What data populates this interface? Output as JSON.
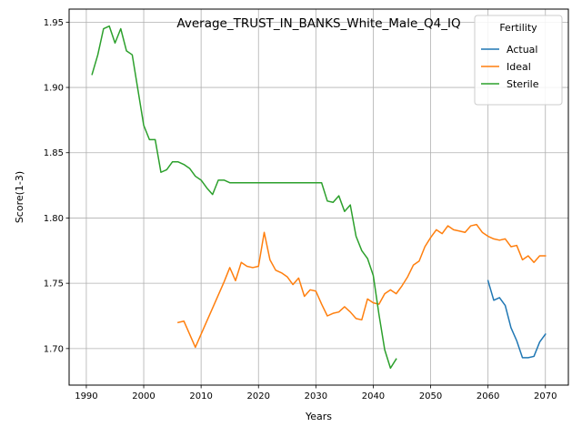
{
  "chart_data": {
    "type": "line",
    "title": "Average_TRUST_IN_BANKS_White_Male_Q4_IQ",
    "xlabel": "Years",
    "ylabel": "Score(1-3)",
    "xlim": [
      1987,
      2074
    ],
    "ylim": [
      1.672,
      1.96
    ],
    "xticks": [
      1990,
      2000,
      2010,
      2020,
      2030,
      2040,
      2050,
      2060,
      2070
    ],
    "yticks": [
      1.7,
      1.75,
      1.8,
      1.85,
      1.9,
      1.95
    ],
    "grid": true,
    "legend": {
      "title": "Fertility",
      "position": "top-right"
    },
    "series": [
      {
        "name": "Actual",
        "color": "#1f77b4",
        "x": [
          2060,
          2061,
          2062,
          2063,
          2064,
          2065,
          2066,
          2067,
          2068,
          2069,
          2070
        ],
        "y": [
          1.752,
          1.737,
          1.739,
          1.733,
          1.716,
          1.706,
          1.693,
          1.693,
          1.694,
          1.705,
          1.711
        ]
      },
      {
        "name": "Ideal",
        "color": "#ff7f0e",
        "x": [
          2006,
          2007,
          2008,
          2009,
          2010,
          2011,
          2012,
          2013,
          2014,
          2015,
          2016,
          2017,
          2018,
          2019,
          2020,
          2021,
          2022,
          2023,
          2024,
          2025,
          2026,
          2027,
          2028,
          2029,
          2030,
          2031,
          2032,
          2033,
          2034,
          2035,
          2036,
          2037,
          2038,
          2039,
          2040,
          2041,
          2042,
          2043,
          2044,
          2045,
          2046,
          2047,
          2048,
          2049,
          2050,
          2051,
          2052,
          2053,
          2054,
          2055,
          2056,
          2057,
          2058,
          2059,
          2060,
          2061,
          2062,
          2063,
          2064,
          2065,
          2066,
          2067,
          2068,
          2069,
          2070
        ],
        "y": [
          1.72,
          1.721,
          1.711,
          1.701,
          1.711,
          1.721,
          1.731,
          1.741,
          1.751,
          1.762,
          1.752,
          1.766,
          1.763,
          1.762,
          1.763,
          1.789,
          1.768,
          1.76,
          1.758,
          1.755,
          1.749,
          1.754,
          1.74,
          1.745,
          1.744,
          1.734,
          1.725,
          1.727,
          1.728,
          1.732,
          1.728,
          1.723,
          1.722,
          1.738,
          1.735,
          1.734,
          1.742,
          1.745,
          1.742,
          1.748,
          1.755,
          1.764,
          1.767,
          1.778,
          1.785,
          1.791,
          1.788,
          1.794,
          1.791,
          1.79,
          1.789,
          1.794,
          1.795,
          1.789,
          1.786,
          1.784,
          1.783,
          1.784,
          1.778,
          1.779,
          1.768,
          1.771,
          1.766,
          1.771,
          1.771
        ]
      },
      {
        "name": "Sterile",
        "color": "#2ca02c",
        "x": [
          1991,
          1992,
          1993,
          1994,
          1995,
          1996,
          1997,
          1998,
          1999,
          2000,
          2001,
          2002,
          2003,
          2004,
          2005,
          2006,
          2007,
          2008,
          2009,
          2010,
          2011,
          2012,
          2013,
          2014,
          2015,
          2016,
          2017,
          2018,
          2019,
          2020,
          2021,
          2022,
          2023,
          2024,
          2025,
          2026,
          2027,
          2028,
          2029,
          2030,
          2031,
          2032,
          2033,
          2034,
          2035,
          2036,
          2037,
          2038,
          2039,
          2040,
          2041,
          2042,
          2043,
          2044
        ],
        "y": [
          1.91,
          1.925,
          1.945,
          1.947,
          1.934,
          1.945,
          1.928,
          1.925,
          1.898,
          1.871,
          1.86,
          1.86,
          1.835,
          1.837,
          1.843,
          1.843,
          1.841,
          1.838,
          1.832,
          1.829,
          1.823,
          1.818,
          1.829,
          1.829,
          1.827,
          1.827,
          1.827,
          1.827,
          1.827,
          1.827,
          1.827,
          1.827,
          1.827,
          1.827,
          1.827,
          1.827,
          1.827,
          1.827,
          1.827,
          1.827,
          1.827,
          1.813,
          1.812,
          1.817,
          1.805,
          1.81,
          1.786,
          1.775,
          1.769,
          1.756,
          1.726,
          1.699,
          1.685,
          1.692
        ]
      }
    ]
  }
}
